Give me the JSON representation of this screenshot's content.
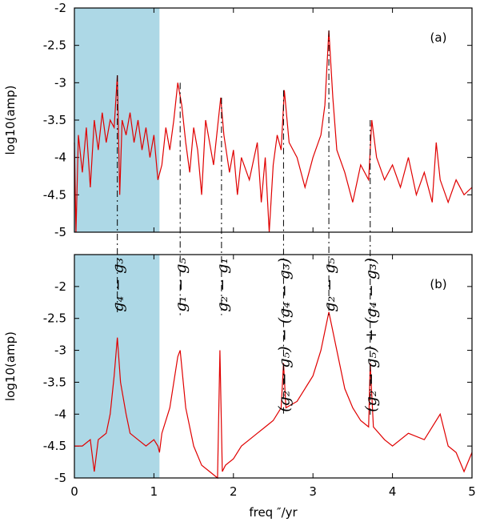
{
  "chart_data": [
    {
      "type": "line",
      "panel_label": "(a)",
      "y_label": "log10(amp)",
      "xlim": [
        0,
        5
      ],
      "ylim": [
        -5,
        -2
      ],
      "xticks": [
        0,
        1,
        2,
        3,
        4,
        5
      ],
      "yticks": [
        -5,
        -4.5,
        -4,
        -3.5,
        -3,
        -2.5,
        -2
      ],
      "highlight_x": [
        0,
        1.07
      ],
      "highlight_color": "#add8e6",
      "series": [
        {
          "color": "#e00000",
          "x": [
            0,
            0.02,
            0.05,
            0.1,
            0.15,
            0.2,
            0.25,
            0.3,
            0.35,
            0.4,
            0.45,
            0.5,
            0.54,
            0.57,
            0.6,
            0.65,
            0.7,
            0.75,
            0.8,
            0.85,
            0.9,
            0.95,
            1.0,
            1.05,
            1.1,
            1.15,
            1.2,
            1.25,
            1.3,
            1.35,
            1.4,
            1.45,
            1.5,
            1.55,
            1.6,
            1.65,
            1.7,
            1.75,
            1.8,
            1.84,
            1.88,
            1.95,
            2.0,
            2.05,
            2.1,
            2.2,
            2.3,
            2.35,
            2.4,
            2.45,
            2.5,
            2.55,
            2.6,
            2.64,
            2.7,
            2.8,
            2.9,
            3.0,
            3.1,
            3.15,
            3.2,
            3.25,
            3.3,
            3.4,
            3.5,
            3.6,
            3.7,
            3.74,
            3.8,
            3.9,
            4.0,
            4.1,
            4.2,
            4.3,
            4.4,
            4.5,
            4.55,
            4.6,
            4.7,
            4.8,
            4.9,
            5.0
          ],
          "values": [
            -3.8,
            -5,
            -3.7,
            -4.2,
            -3.6,
            -4.4,
            -3.5,
            -3.9,
            -3.4,
            -3.8,
            -3.5,
            -3.6,
            -2.9,
            -4.5,
            -3.5,
            -3.7,
            -3.4,
            -3.8,
            -3.5,
            -3.9,
            -3.6,
            -4.0,
            -3.7,
            -4.3,
            -4.1,
            -3.6,
            -3.9,
            -3.5,
            -3.0,
            -3.3,
            -3.8,
            -4.2,
            -3.6,
            -3.9,
            -4.5,
            -3.5,
            -3.8,
            -4.1,
            -3.6,
            -3.2,
            -3.7,
            -4.2,
            -3.9,
            -4.5,
            -4.0,
            -4.3,
            -3.8,
            -4.6,
            -4.0,
            -5,
            -4.1,
            -3.7,
            -3.9,
            -3.1,
            -3.8,
            -4.0,
            -4.4,
            -4.0,
            -3.7,
            -3.3,
            -2.3,
            -3.2,
            -3.9,
            -4.2,
            -4.6,
            -4.1,
            -4.3,
            -3.5,
            -4.0,
            -4.3,
            -4.1,
            -4.4,
            -4.0,
            -4.5,
            -4.2,
            -4.6,
            -3.8,
            -4.3,
            -4.6,
            -4.3,
            -4.5,
            -4.4
          ]
        }
      ]
    },
    {
      "type": "line",
      "panel_label": "(b)",
      "x_label": "freq ″/yr",
      "y_label": "log10(amp)",
      "xlim": [
        0,
        5
      ],
      "ylim": [
        -5,
        -1.5
      ],
      "xticks": [
        0,
        1,
        2,
        3,
        4,
        5
      ],
      "yticks": [
        -5,
        -4.5,
        -4,
        -3.5,
        -3,
        -2.5,
        -2
      ],
      "highlight_x": [
        0,
        1.07
      ],
      "highlight_color": "#add8e6",
      "series": [
        {
          "color": "#e00000",
          "x": [
            0,
            0.1,
            0.2,
            0.25,
            0.3,
            0.4,
            0.45,
            0.5,
            0.54,
            0.58,
            0.65,
            0.7,
            0.8,
            0.9,
            1.0,
            1.05,
            1.07,
            1.1,
            1.2,
            1.3,
            1.33,
            1.4,
            1.5,
            1.6,
            1.7,
            1.8,
            1.83,
            1.86,
            1.9,
            2.0,
            2.1,
            2.2,
            2.3,
            2.4,
            2.5,
            2.6,
            2.63,
            2.66,
            2.8,
            2.9,
            3.0,
            3.1,
            3.2,
            3.3,
            3.4,
            3.5,
            3.6,
            3.7,
            3.72,
            3.76,
            3.9,
            4.0,
            4.2,
            4.4,
            4.6,
            4.7,
            4.8,
            4.9,
            5.0
          ],
          "values": [
            -4.5,
            -4.5,
            -4.4,
            -4.9,
            -4.4,
            -4.3,
            -4.0,
            -3.4,
            -2.8,
            -3.5,
            -4.0,
            -4.3,
            -4.4,
            -4.5,
            -4.4,
            -4.5,
            -4.6,
            -4.3,
            -3.9,
            -3.1,
            -3.0,
            -3.9,
            -4.5,
            -4.8,
            -4.9,
            -5.0,
            -3.0,
            -4.9,
            -4.8,
            -4.7,
            -4.5,
            -4.4,
            -4.3,
            -4.2,
            -4.1,
            -3.9,
            -3.2,
            -3.9,
            -3.8,
            -3.6,
            -3.4,
            -3.0,
            -2.4,
            -3.0,
            -3.6,
            -3.9,
            -4.1,
            -4.2,
            -3.2,
            -4.2,
            -4.4,
            -4.5,
            -4.3,
            -4.4,
            -4.0,
            -4.5,
            -4.6,
            -4.9,
            -4.6
          ]
        }
      ],
      "annotations": [
        {
          "text": "g₄ − g₃",
          "x": 0.54
        },
        {
          "text": "g₁ − g₅",
          "x": 1.33
        },
        {
          "text": "g₂ − g₁",
          "x": 1.85
        },
        {
          "text": "(g₂ − g₅) − (g₄ − g₃)",
          "x": 2.63
        },
        {
          "text": "g₂ − g₅",
          "x": 3.2
        },
        {
          "text": "(g₂ − g₅) + (g₄ − g₃)",
          "x": 3.72
        }
      ]
    }
  ]
}
